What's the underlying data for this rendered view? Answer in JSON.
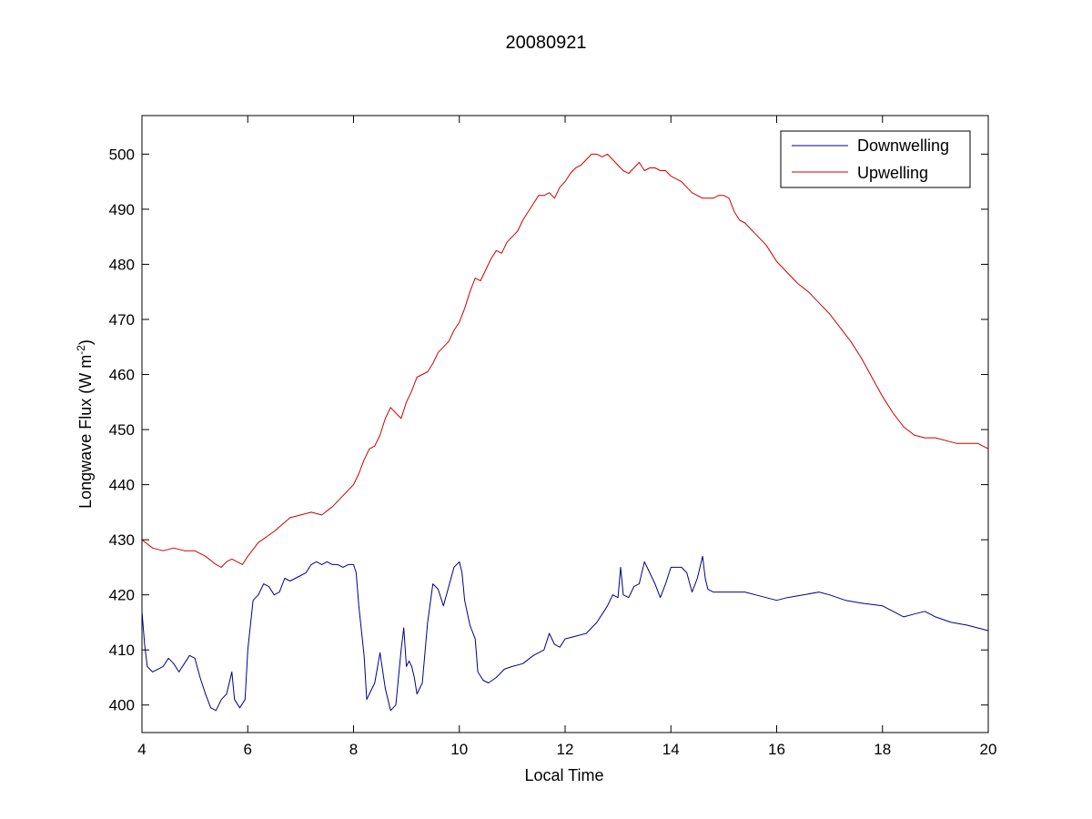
{
  "chart_data": {
    "type": "line",
    "title": "20080921",
    "xlabel": "Local Time",
    "ylabel_main": "Longwave Flux (W m",
    "ylabel_sup": "-2",
    "ylabel_close": ")",
    "xlim": [
      4,
      20
    ],
    "ylim": [
      395,
      507
    ],
    "xticks": [
      4,
      6,
      8,
      10,
      12,
      14,
      16,
      18,
      20
    ],
    "yticks": [
      400,
      410,
      420,
      430,
      440,
      450,
      460,
      470,
      480,
      490,
      500
    ],
    "grid": false,
    "legend_position": "top-right",
    "series": [
      {
        "name": "Downwelling",
        "color": "#00008b",
        "points": [
          [
            4.0,
            417
          ],
          [
            4.05,
            411
          ],
          [
            4.1,
            407
          ],
          [
            4.2,
            406
          ],
          [
            4.3,
            406.5
          ],
          [
            4.4,
            407
          ],
          [
            4.5,
            408.5
          ],
          [
            4.6,
            407.5
          ],
          [
            4.7,
            406
          ],
          [
            4.8,
            407.5
          ],
          [
            4.9,
            409
          ],
          [
            5.0,
            408.5
          ],
          [
            5.1,
            405
          ],
          [
            5.2,
            402
          ],
          [
            5.3,
            399.5
          ],
          [
            5.4,
            399
          ],
          [
            5.5,
            401
          ],
          [
            5.6,
            402
          ],
          [
            5.7,
            406
          ],
          [
            5.75,
            401
          ],
          [
            5.85,
            399.5
          ],
          [
            5.95,
            401
          ],
          [
            6.0,
            410
          ],
          [
            6.1,
            419
          ],
          [
            6.2,
            420
          ],
          [
            6.3,
            422
          ],
          [
            6.4,
            421.5
          ],
          [
            6.5,
            420
          ],
          [
            6.6,
            420.5
          ],
          [
            6.7,
            423
          ],
          [
            6.8,
            422.5
          ],
          [
            6.9,
            423
          ],
          [
            7.0,
            423.5
          ],
          [
            7.1,
            424
          ],
          [
            7.2,
            425.5
          ],
          [
            7.3,
            426
          ],
          [
            7.4,
            425.5
          ],
          [
            7.5,
            426
          ],
          [
            7.6,
            425.5
          ],
          [
            7.7,
            425.5
          ],
          [
            7.8,
            425
          ],
          [
            7.9,
            425.5
          ],
          [
            8.0,
            425.5
          ],
          [
            8.05,
            424
          ],
          [
            8.1,
            418
          ],
          [
            8.2,
            409
          ],
          [
            8.25,
            401
          ],
          [
            8.3,
            402
          ],
          [
            8.4,
            404
          ],
          [
            8.5,
            409.5
          ],
          [
            8.6,
            403
          ],
          [
            8.7,
            399
          ],
          [
            8.8,
            400
          ],
          [
            8.9,
            410
          ],
          [
            8.95,
            414
          ],
          [
            9.0,
            407
          ],
          [
            9.05,
            408
          ],
          [
            9.1,
            407
          ],
          [
            9.15,
            405
          ],
          [
            9.2,
            402
          ],
          [
            9.3,
            404
          ],
          [
            9.4,
            415
          ],
          [
            9.5,
            422
          ],
          [
            9.6,
            421
          ],
          [
            9.7,
            418
          ],
          [
            9.8,
            421.5
          ],
          [
            9.9,
            425
          ],
          [
            10.0,
            426
          ],
          [
            10.05,
            424
          ],
          [
            10.1,
            419
          ],
          [
            10.2,
            414.5
          ],
          [
            10.3,
            412
          ],
          [
            10.35,
            406
          ],
          [
            10.45,
            404.5
          ],
          [
            10.55,
            404
          ],
          [
            10.7,
            405
          ],
          [
            10.85,
            406.5
          ],
          [
            11.0,
            407
          ],
          [
            11.2,
            407.5
          ],
          [
            11.4,
            409
          ],
          [
            11.6,
            410
          ],
          [
            11.7,
            413
          ],
          [
            11.8,
            411
          ],
          [
            11.9,
            410.5
          ],
          [
            12.0,
            412
          ],
          [
            12.2,
            412.5
          ],
          [
            12.4,
            413
          ],
          [
            12.6,
            415
          ],
          [
            12.8,
            418
          ],
          [
            12.9,
            420
          ],
          [
            13.0,
            419.5
          ],
          [
            13.05,
            425
          ],
          [
            13.1,
            420
          ],
          [
            13.2,
            419.5
          ],
          [
            13.3,
            421.5
          ],
          [
            13.4,
            422
          ],
          [
            13.5,
            426
          ],
          [
            13.6,
            424
          ],
          [
            13.7,
            422
          ],
          [
            13.8,
            419.5
          ],
          [
            13.9,
            422
          ],
          [
            14.0,
            425
          ],
          [
            14.1,
            425
          ],
          [
            14.2,
            425
          ],
          [
            14.3,
            424
          ],
          [
            14.4,
            420.5
          ],
          [
            14.5,
            423
          ],
          [
            14.6,
            427
          ],
          [
            14.65,
            423
          ],
          [
            14.7,
            421
          ],
          [
            14.8,
            420.5
          ],
          [
            15.0,
            420.5
          ],
          [
            15.2,
            420.5
          ],
          [
            15.4,
            420.5
          ],
          [
            15.6,
            420
          ],
          [
            15.8,
            419.5
          ],
          [
            16.0,
            419
          ],
          [
            16.2,
            419.5
          ],
          [
            16.5,
            420
          ],
          [
            16.8,
            420.5
          ],
          [
            17.0,
            420
          ],
          [
            17.3,
            419
          ],
          [
            17.6,
            418.5
          ],
          [
            18.0,
            418
          ],
          [
            18.2,
            417
          ],
          [
            18.4,
            416
          ],
          [
            18.6,
            416.5
          ],
          [
            18.8,
            417
          ],
          [
            19.0,
            416
          ],
          [
            19.3,
            415
          ],
          [
            19.6,
            414.5
          ],
          [
            20.0,
            413.5
          ]
        ]
      },
      {
        "name": "Upwelling",
        "color": "#cc0000",
        "points": [
          [
            4.0,
            430
          ],
          [
            4.2,
            428.5
          ],
          [
            4.4,
            428
          ],
          [
            4.6,
            428.5
          ],
          [
            4.8,
            428
          ],
          [
            5.0,
            428
          ],
          [
            5.2,
            427
          ],
          [
            5.4,
            425.5
          ],
          [
            5.5,
            425
          ],
          [
            5.6,
            426
          ],
          [
            5.7,
            426.5
          ],
          [
            5.8,
            426
          ],
          [
            5.9,
            425.5
          ],
          [
            6.0,
            427
          ],
          [
            6.2,
            429.5
          ],
          [
            6.5,
            431.5
          ],
          [
            6.8,
            434
          ],
          [
            7.0,
            434.5
          ],
          [
            7.2,
            435
          ],
          [
            7.4,
            434.5
          ],
          [
            7.6,
            436
          ],
          [
            7.8,
            438
          ],
          [
            8.0,
            440
          ],
          [
            8.1,
            442
          ],
          [
            8.2,
            444.5
          ],
          [
            8.3,
            446.5
          ],
          [
            8.4,
            447
          ],
          [
            8.5,
            449
          ],
          [
            8.6,
            452
          ],
          [
            8.7,
            454
          ],
          [
            8.8,
            453
          ],
          [
            8.9,
            452
          ],
          [
            9.0,
            455
          ],
          [
            9.1,
            457
          ],
          [
            9.2,
            459.5
          ],
          [
            9.3,
            460
          ],
          [
            9.4,
            460.5
          ],
          [
            9.5,
            462
          ],
          [
            9.6,
            464
          ],
          [
            9.7,
            465
          ],
          [
            9.8,
            466
          ],
          [
            9.9,
            468
          ],
          [
            10.0,
            469.5
          ],
          [
            10.1,
            472
          ],
          [
            10.2,
            475
          ],
          [
            10.3,
            477.5
          ],
          [
            10.4,
            477
          ],
          [
            10.5,
            479
          ],
          [
            10.6,
            481
          ],
          [
            10.7,
            482.5
          ],
          [
            10.8,
            482
          ],
          [
            10.9,
            484
          ],
          [
            11.0,
            485
          ],
          [
            11.1,
            486
          ],
          [
            11.2,
            488
          ],
          [
            11.3,
            489.5
          ],
          [
            11.4,
            491
          ],
          [
            11.5,
            492.5
          ],
          [
            11.6,
            492.5
          ],
          [
            11.7,
            493
          ],
          [
            11.8,
            492
          ],
          [
            11.9,
            494
          ],
          [
            12.0,
            495
          ],
          [
            12.1,
            496.5
          ],
          [
            12.2,
            497.5
          ],
          [
            12.3,
            498
          ],
          [
            12.4,
            499
          ],
          [
            12.5,
            500
          ],
          [
            12.6,
            500
          ],
          [
            12.7,
            499.5
          ],
          [
            12.8,
            500
          ],
          [
            12.9,
            499
          ],
          [
            13.0,
            498
          ],
          [
            13.1,
            497
          ],
          [
            13.2,
            496.5
          ],
          [
            13.3,
            497.5
          ],
          [
            13.4,
            498.5
          ],
          [
            13.5,
            497
          ],
          [
            13.6,
            497.5
          ],
          [
            13.7,
            497.5
          ],
          [
            13.8,
            497
          ],
          [
            13.9,
            497
          ],
          [
            14.0,
            496
          ],
          [
            14.1,
            495.5
          ],
          [
            14.2,
            495
          ],
          [
            14.3,
            494
          ],
          [
            14.4,
            493
          ],
          [
            14.5,
            492.5
          ],
          [
            14.6,
            492
          ],
          [
            14.7,
            492
          ],
          [
            14.8,
            492
          ],
          [
            14.9,
            492.5
          ],
          [
            15.0,
            492.5
          ],
          [
            15.1,
            492
          ],
          [
            15.2,
            489.5
          ],
          [
            15.3,
            488
          ],
          [
            15.4,
            487.5
          ],
          [
            15.5,
            486.5
          ],
          [
            15.6,
            485.5
          ],
          [
            15.7,
            484.5
          ],
          [
            15.8,
            483.5
          ],
          [
            15.9,
            482
          ],
          [
            16.0,
            480.5
          ],
          [
            16.2,
            478.5
          ],
          [
            16.4,
            476.5
          ],
          [
            16.6,
            475
          ],
          [
            16.8,
            473
          ],
          [
            17.0,
            471
          ],
          [
            17.2,
            468.5
          ],
          [
            17.4,
            466
          ],
          [
            17.6,
            463
          ],
          [
            17.8,
            459.5
          ],
          [
            18.0,
            456
          ],
          [
            18.2,
            453
          ],
          [
            18.4,
            450.5
          ],
          [
            18.6,
            449
          ],
          [
            18.8,
            448.5
          ],
          [
            19.0,
            448.5
          ],
          [
            19.2,
            448
          ],
          [
            19.4,
            447.5
          ],
          [
            19.6,
            447.5
          ],
          [
            19.8,
            447.5
          ],
          [
            20.0,
            446.5
          ]
        ]
      }
    ]
  }
}
